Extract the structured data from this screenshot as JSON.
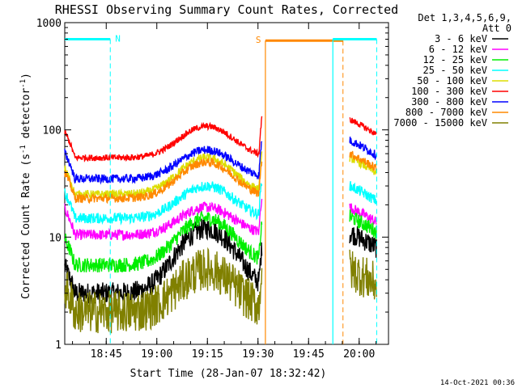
{
  "chart_data": {
    "type": "line",
    "title": "RHESSI Observing Summary Count Rates, Corrected",
    "xlabel": "Start Time (28-Jan-07 18:32:42)",
    "ylabel_main": "Corrected Count Rate (s",
    "ylabel_sup1": "-1",
    "ylabel_mid": " detector",
    "ylabel_sup2": "-1",
    "ylabel_end": ")",
    "yscale": "log",
    "ylim": [
      1,
      1000
    ],
    "xlim_minutes": [
      0,
      96
    ],
    "x_ticks": [
      {
        "minute": 12.3,
        "label": "18:45"
      },
      {
        "minute": 27.3,
        "label": "19:00"
      },
      {
        "minute": 42.3,
        "label": "19:15"
      },
      {
        "minute": 57.3,
        "label": "19:30"
      },
      {
        "minute": 72.3,
        "label": "19:45"
      },
      {
        "minute": 87.3,
        "label": "20:00"
      }
    ],
    "y_ticks": [
      {
        "value": 1,
        "label": "1"
      },
      {
        "value": 10,
        "label": "10"
      },
      {
        "value": 100,
        "label": "100"
      },
      {
        "value": 1000,
        "label": "1000"
      }
    ],
    "legend_header": [
      "Det 1,3,4,5,6,9,",
      "Att 0"
    ],
    "series": [
      {
        "name": "3 - 6 keV",
        "color": "#000000",
        "base": 3.0,
        "peak": 12,
        "after": 11,
        "noise": 0.1
      },
      {
        "name": "6 - 12 keV",
        "color": "#ff00ff",
        "base": 10.5,
        "peak": 19,
        "after": 19,
        "noise": 0.05
      },
      {
        "name": "12 - 25 keV",
        "color": "#00ee00",
        "base": 5.5,
        "peak": 15,
        "after": 15.5,
        "noise": 0.07
      },
      {
        "name": "25 - 50 keV",
        "color": "#00ffff",
        "base": 15,
        "peak": 30,
        "after": 30,
        "noise": 0.05
      },
      {
        "name": "50 - 100 keV",
        "color": "#dddd00",
        "base": 25,
        "peak": 55,
        "after": 55,
        "noise": 0.04
      },
      {
        "name": "100 - 300 keV",
        "color": "#ff0000",
        "base": 55,
        "peak": 108,
        "after": 125,
        "noise": 0.03
      },
      {
        "name": "300 - 800 keV",
        "color": "#0000ff",
        "base": 35,
        "peak": 65,
        "after": 80,
        "noise": 0.04
      },
      {
        "name": "800 - 7000 keV",
        "color": "#ff8800",
        "base": 23,
        "peak": 50,
        "after": 60,
        "noise": 0.04
      },
      {
        "name": "7000 - 15000 keV",
        "color": "#808000",
        "base": 2.0,
        "peak": 5,
        "after": 5,
        "noise": 0.2
      }
    ],
    "segments_minutes": [
      [
        0,
        58.5
      ],
      [
        84.5,
        92.5
      ]
    ],
    "markers": [
      {
        "label": "N",
        "color": "#00ffff",
        "y": 700,
        "start": 0,
        "end": 13.5,
        "dashed_at": 13.5,
        "solid_at": null
      },
      {
        "label": "S",
        "color": "#ff8800",
        "y": 680,
        "start": 59.5,
        "end": 82.5,
        "dashed_at": 82.5,
        "solid_at": 59.5
      },
      {
        "label": "",
        "color": "#00ffff",
        "y": 700,
        "start": 79.5,
        "end": 92.5,
        "dashed_at": 92.5,
        "solid_at": 79.5
      }
    ],
    "grid": false,
    "legend_position": "right"
  },
  "footer_date": "14-Oct-2021 00:36"
}
